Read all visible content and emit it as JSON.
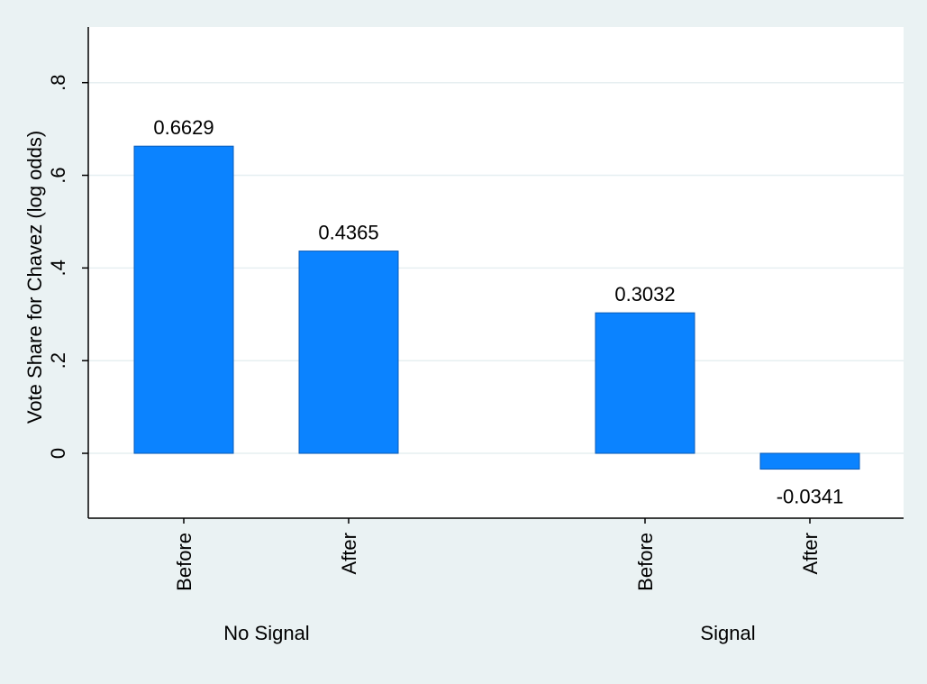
{
  "chart_data": {
    "type": "bar",
    "title": "",
    "xlabel": "",
    "ylabel": "Vote Share for Chavez (log odds)",
    "ylim": [
      -0.14,
      0.92
    ],
    "yticks": [
      0,
      0.2,
      0.4,
      0.6,
      0.8
    ],
    "ytick_labels": [
      "0",
      ".2",
      ".4",
      ".6",
      ".8"
    ],
    "grid": true,
    "groups": [
      {
        "label": "No Signal",
        "bars": [
          {
            "category": "Before",
            "value": 0.6629,
            "label": "0.6629"
          },
          {
            "category": "After",
            "value": 0.4365,
            "label": "0.4365"
          }
        ]
      },
      {
        "label": "Signal",
        "bars": [
          {
            "category": "Before",
            "value": 0.3032,
            "label": "0.3032"
          },
          {
            "category": "After",
            "value": -0.0341,
            "label": "-0.0341"
          }
        ]
      }
    ],
    "colors": {
      "bar": "#0b83ff",
      "bar_edge": "#0a5bb8",
      "grid": "#e6eff1",
      "plot_bg": "#ffffff",
      "page_bg": "#eaf2f3"
    }
  }
}
